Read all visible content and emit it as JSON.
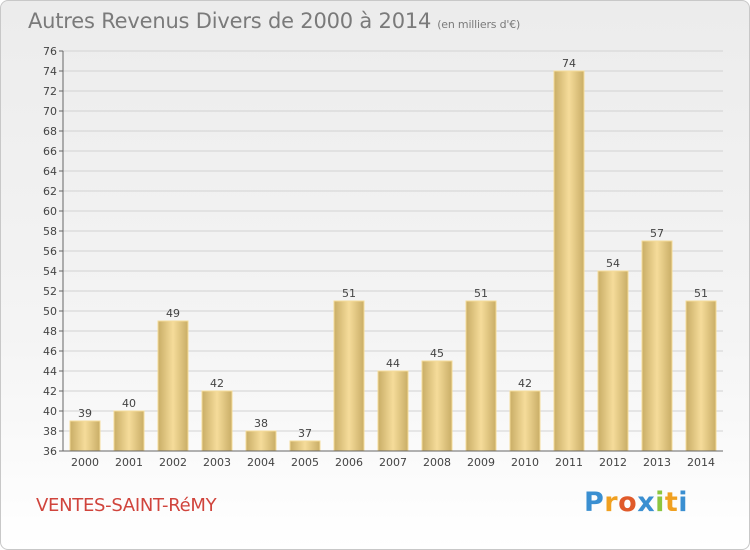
{
  "title": "Autres Revenus Divers de 2000 à 2014",
  "subtitle": "(en milliers d'€)",
  "commune": "VENTES-SAINT-RéMY",
  "brand": {
    "text": "Proxiti",
    "letters": [
      {
        "ch": "P",
        "color": "#3a8fd1"
      },
      {
        "ch": "r",
        "color": "#f0a020"
      },
      {
        "ch": "o",
        "color": "#e05a2a"
      },
      {
        "ch": "x",
        "color": "#3a8fd1"
      },
      {
        "ch": "i",
        "color": "#8cc63f"
      },
      {
        "ch": "t",
        "color": "#f0a020"
      },
      {
        "ch": "i",
        "color": "#3a8fd1"
      }
    ]
  },
  "colors": {
    "bar_light": "#f5dc9a",
    "bar_dark": "#c9ad66",
    "grid": "#d2d2d2",
    "title": "#7a7a7a",
    "commune": "#d0443c"
  },
  "chart_data": {
    "type": "bar",
    "categories": [
      "2000",
      "2001",
      "2002",
      "2003",
      "2004",
      "2005",
      "2006",
      "2007",
      "2008",
      "2009",
      "2010",
      "2011",
      "2012",
      "2013",
      "2014"
    ],
    "values": [
      39,
      40,
      49,
      42,
      38,
      37,
      51,
      44,
      45,
      51,
      42,
      74,
      54,
      57,
      51
    ],
    "ylim": [
      36,
      76
    ],
    "ytick_step": 2,
    "grid": true
  }
}
